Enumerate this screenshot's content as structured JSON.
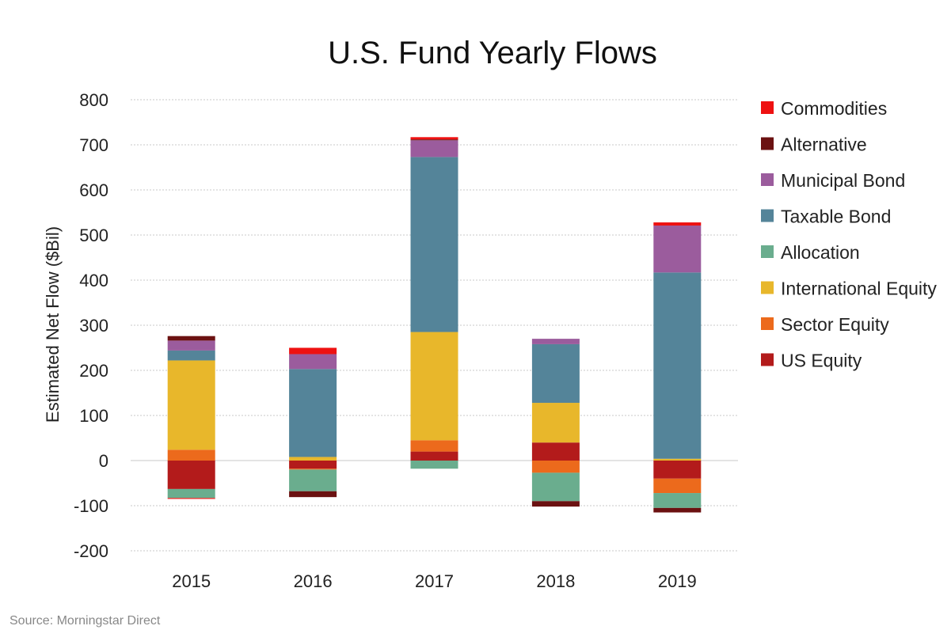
{
  "chart_data": {
    "type": "bar",
    "stacked": true,
    "title": "U.S. Fund Yearly Flows",
    "ylabel": "Estimated Net Flow ($Bil)",
    "xlabel": "",
    "ylim": [
      -200,
      800
    ],
    "yticks": [
      800,
      700,
      600,
      500,
      400,
      300,
      200,
      100,
      0,
      -100,
      -200
    ],
    "grid": true,
    "legend_position": "right",
    "categories": [
      "2015",
      "2016",
      "2017",
      "2018",
      "2019"
    ],
    "series": [
      {
        "name": "US Equity",
        "color": "#b31b1b",
        "values": [
          -63,
          -18,
          20,
          40,
          -40
        ]
      },
      {
        "name": "Sector Equity",
        "color": "#ec6a1c",
        "values": [
          24,
          -2,
          25,
          -27,
          -32
        ]
      },
      {
        "name": "International Equity",
        "color": "#e8b72b",
        "values": [
          198,
          8,
          240,
          88,
          4
        ]
      },
      {
        "name": "Allocation",
        "color": "#6aad8e",
        "values": [
          -20,
          -48,
          -18,
          -63,
          -33
        ]
      },
      {
        "name": "Taxable Bond",
        "color": "#548499",
        "values": [
          22,
          195,
          388,
          130,
          413
        ]
      },
      {
        "name": "Municipal Bond",
        "color": "#9b5c9d",
        "values": [
          22,
          33,
          37,
          12,
          104
        ]
      },
      {
        "name": "Alternative",
        "color": "#6b1111",
        "values": [
          10,
          -13,
          2,
          -12,
          -10
        ]
      },
      {
        "name": "Commodities",
        "color": "#ee1111",
        "values": [
          -2,
          14,
          5,
          0,
          7
        ]
      }
    ]
  },
  "legend_order": [
    "Commodities",
    "Alternative",
    "Municipal Bond",
    "Taxable Bond",
    "Allocation",
    "International Equity",
    "Sector Equity",
    "US Equity"
  ],
  "source": "Source: Morningstar Direct"
}
